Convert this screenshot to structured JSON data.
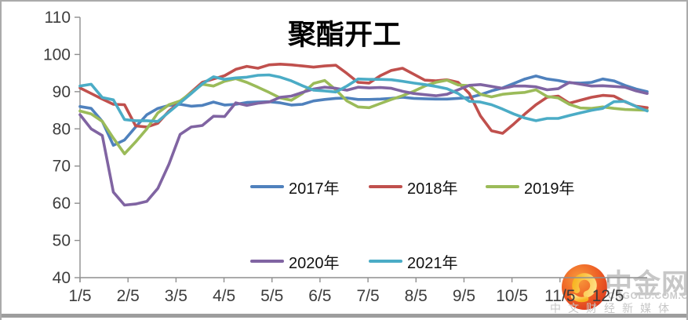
{
  "title": "聚酯开工",
  "legend": {
    "items": [
      {
        "label": "2017年",
        "color": "#4F81BD"
      },
      {
        "label": "2018年",
        "color": "#C0504D"
      },
      {
        "label": "2019年",
        "color": "#9BBB59"
      },
      {
        "label": "2020年",
        "color": "#8064A2"
      },
      {
        "label": "2021年",
        "color": "#4BACC6"
      }
    ]
  },
  "watermark": {
    "brand": "中金网",
    "domain": "CNGOLD.COM.CN",
    "tagline": "中文财经新媒体",
    "circle_color_outer": "#d8341f",
    "circle_color_inner": "#f89c3c",
    "swirl_color": "#ffcf3f",
    "text_color": "#c7c7c7"
  },
  "chart_data": {
    "type": "line",
    "title": "聚酯开工",
    "xlabel": "",
    "ylabel": "",
    "ylim": [
      40,
      110
    ],
    "yticks": [
      110,
      100,
      90,
      80,
      70,
      60,
      50,
      40
    ],
    "x_tick_labels": [
      "1/5",
      "2/5",
      "3/5",
      "4/5",
      "5/5",
      "6/5",
      "7/5",
      "8/5",
      "9/5",
      "10/5",
      "11/5",
      "12/5"
    ],
    "x_unit": "weekly points, Jan 5 through year end",
    "grid": false,
    "legend_position": "bottom-center, two rows",
    "series": [
      {
        "name": "2017年",
        "color": "#4F81BD",
        "values": [
          86.0,
          85.5,
          82.0,
          75.6,
          77.0,
          80.5,
          83.8,
          85.5,
          86.3,
          86.6,
          86.1,
          86.3,
          87.2,
          86.4,
          86.6,
          87.1,
          87.2,
          87.3,
          87.0,
          86.4,
          86.6,
          87.5,
          87.9,
          88.2,
          88.3,
          87.9,
          87.9,
          88.0,
          88.2,
          88.5,
          88.2,
          88.1,
          88.0,
          88.0,
          88.2,
          88.4,
          89.2,
          90.2,
          91.0,
          92.2,
          93.4,
          94.2,
          93.4,
          93.0,
          92.4,
          92.3,
          92.5,
          93.4,
          92.9,
          91.7,
          90.7,
          90.0
        ]
      },
      {
        "name": "2018年",
        "color": "#C0504D",
        "values": [
          91.0,
          89.5,
          88.0,
          86.6,
          86.5,
          80.8,
          80.5,
          81.5,
          84.8,
          87.3,
          89.9,
          92.5,
          93.4,
          94.3,
          96.0,
          96.8,
          96.3,
          97.2,
          97.4,
          97.2,
          96.9,
          96.6,
          96.9,
          97.1,
          94.9,
          92.5,
          92.3,
          94.3,
          95.7,
          96.3,
          94.7,
          93.1,
          92.9,
          93.2,
          92.5,
          89.5,
          83.5,
          79.5,
          78.8,
          81.3,
          84.0,
          86.5,
          88.5,
          88.8,
          86.9,
          87.7,
          88.5,
          89.0,
          88.8,
          87.3,
          86.1,
          85.7
        ]
      },
      {
        "name": "2019年",
        "color": "#9BBB59",
        "values": [
          84.8,
          84.0,
          82.0,
          77.5,
          73.3,
          76.5,
          80.0,
          84.3,
          86.5,
          87.5,
          89.7,
          92.0,
          91.5,
          92.8,
          93.5,
          92.5,
          91.2,
          89.8,
          88.3,
          87.7,
          89.5,
          92.2,
          93.0,
          90.5,
          87.5,
          85.9,
          85.7,
          86.8,
          87.9,
          88.9,
          90.1,
          91.5,
          92.5,
          93.1,
          91.8,
          91.6,
          89.3,
          88.6,
          89.3,
          89.6,
          89.8,
          90.5,
          88.7,
          88.3,
          86.6,
          85.6,
          85.5,
          85.9,
          85.5,
          85.2,
          85.1,
          85.0
        ]
      },
      {
        "name": "2020年",
        "color": "#8064A2",
        "values": [
          83.8,
          80.0,
          78.2,
          63.0,
          59.5,
          59.8,
          60.5,
          64.0,
          70.5,
          78.5,
          80.5,
          80.9,
          83.4,
          83.3,
          87.0,
          86.3,
          86.9,
          87.2,
          88.5,
          88.8,
          89.8,
          90.7,
          91.2,
          90.9,
          90.4,
          91.2,
          91.0,
          91.1,
          90.9,
          90.1,
          89.5,
          89.2,
          88.9,
          89.3,
          90.5,
          91.7,
          91.9,
          91.4,
          90.9,
          91.5,
          91.5,
          91.3,
          90.5,
          90.8,
          92.5,
          92.0,
          91.5,
          91.6,
          91.4,
          91.2,
          90.2,
          89.5
        ]
      },
      {
        "name": "2021年",
        "color": "#4BACC6",
        "values": [
          91.5,
          92.0,
          88.4,
          87.8,
          82.5,
          82.2,
          82.2,
          82.0,
          84.5,
          87.0,
          89.5,
          92.1,
          94.0,
          93.3,
          93.7,
          93.9,
          94.4,
          94.5,
          93.9,
          92.9,
          91.6,
          90.4,
          90.2,
          89.9,
          91.5,
          93.4,
          93.3,
          93.3,
          93.2,
          92.8,
          92.3,
          91.9,
          91.4,
          90.8,
          89.5,
          87.4,
          87.2,
          86.5,
          85.3,
          84.0,
          82.9,
          82.2,
          82.8,
          82.8,
          83.6,
          84.3,
          85.0,
          85.5,
          87.3,
          87.4,
          86.0,
          84.8
        ]
      }
    ]
  }
}
